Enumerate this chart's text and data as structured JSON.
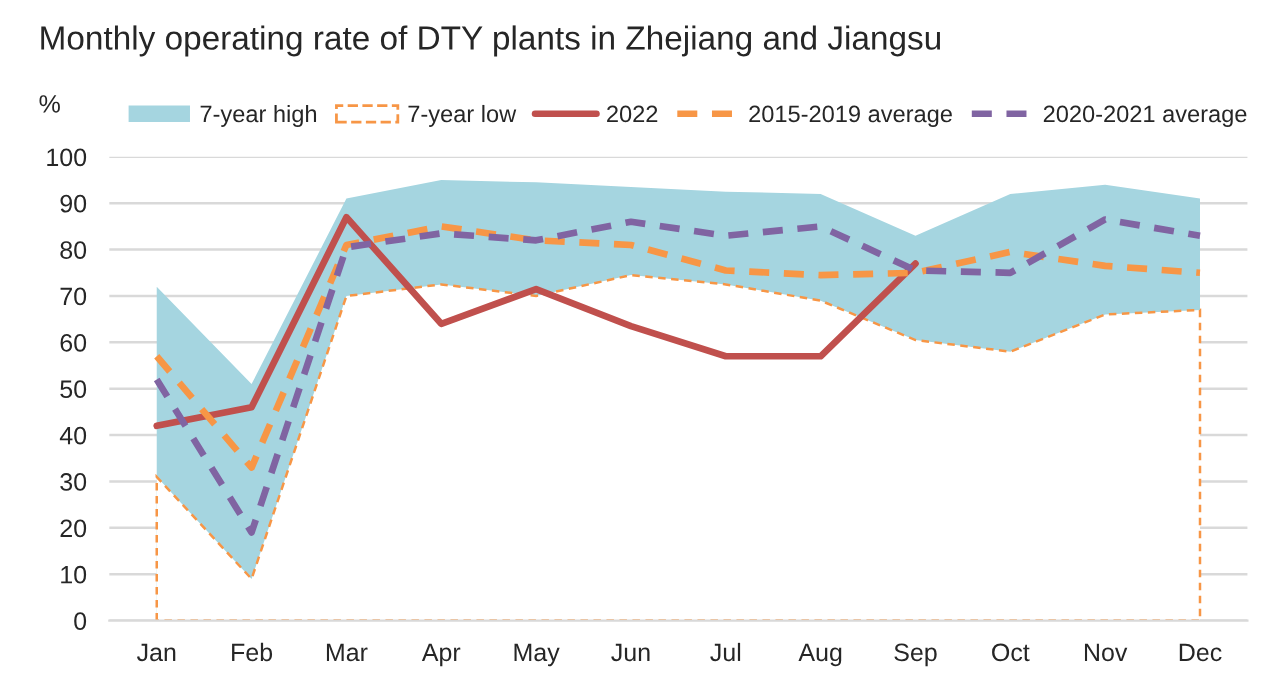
{
  "chart_data": {
    "type": "line",
    "title": "Monthly operating rate of DTY plants in Zhejiang and Jiangsu",
    "ylabel": "%",
    "categories": [
      "Jan",
      "Feb",
      "Mar",
      "Apr",
      "May",
      "Jun",
      "Jul",
      "Aug",
      "Sep",
      "Oct",
      "Nov",
      "Dec"
    ],
    "series": [
      {
        "name": "7-year high",
        "type": "area",
        "color": "#a5d5e0",
        "values": [
          72,
          51,
          91,
          95,
          94.5,
          93.5,
          92.5,
          92,
          83,
          92,
          94,
          91
        ]
      },
      {
        "name": "7-year low",
        "type": "area",
        "color": "#f79646",
        "line_style": "dashed",
        "values": [
          31,
          9,
          70,
          72.5,
          70,
          74.5,
          72.5,
          69,
          60.5,
          58,
          66,
          67
        ]
      },
      {
        "name": "2022",
        "color": "#c0504d",
        "line_style": "solid",
        "values": [
          42,
          46,
          87,
          64,
          71.5,
          63.5,
          57,
          57,
          77,
          null,
          null,
          null
        ]
      },
      {
        "name": "2015-2019 average",
        "color": "#f79646",
        "line_style": "dashed",
        "values": [
          57,
          33,
          81,
          85,
          82,
          81,
          75.5,
          74.5,
          75,
          79.5,
          76.5,
          75
        ]
      },
      {
        "name": "2020-2021 average",
        "color": "#8064a2",
        "line_style": "dashed",
        "values": [
          52,
          19,
          80.5,
          83.5,
          82,
          86,
          83,
          85,
          75.5,
          75,
          86.5,
          83
        ]
      }
    ],
    "ylim": [
      0,
      100
    ],
    "yticks": [
      0,
      10,
      20,
      30,
      40,
      50,
      60,
      70,
      80,
      90,
      100
    ],
    "grid": "y",
    "legend": "top"
  }
}
